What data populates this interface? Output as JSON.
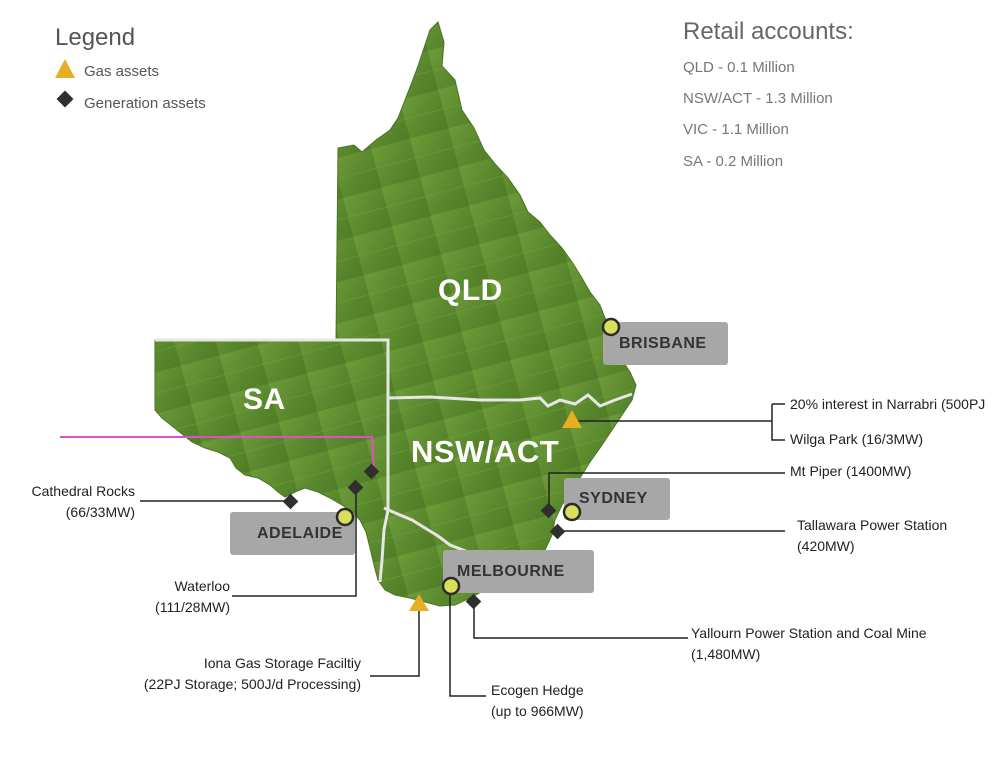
{
  "legend": {
    "title": "Legend",
    "items": [
      {
        "label": "Gas assets",
        "icon": "gas-asset-triangle-icon",
        "color": "#e8ae23"
      },
      {
        "label": "Generation assets",
        "icon": "generation-asset-diamond-icon",
        "color": "#2f2f2f"
      }
    ]
  },
  "retail": {
    "title": "Retail accounts:",
    "rows": [
      "QLD - 0.1 Million",
      "NSW/ACT - 1.3 Million",
      "VIC - 1.1 Million",
      "SA - 0.2 Million"
    ]
  },
  "states": {
    "qld": "QLD",
    "sa": "SA",
    "nsw": "NSW/ACT"
  },
  "cities": {
    "brisbane": "BRISBANE",
    "sydney": "SYDNEY",
    "adelaide": "ADELAIDE",
    "melbourne": "MELBOURNE"
  },
  "assets": {
    "narrabri": "20% interest in Narrabri (500PJ",
    "wilga": "Wilga Park (16/3MW)",
    "mt_piper": "Mt Piper (1400MW)",
    "tallawarra_1": "Tallawara Power Station",
    "tallawarra_2": "(420MW)",
    "yallourn_1": "Yallourn Power Station and Coal Mine",
    "yallourn_2": "(1,480MW)",
    "ecogen_1": "Ecogen Hedge",
    "ecogen_2": "(up to 966MW)",
    "iona_1": "Iona Gas Storage Faciltiy",
    "iona_2": "(22PJ Storage; 500J/d Processing)",
    "waterloo_1": "Waterloo",
    "waterloo_2": "(111/28MW)",
    "cathedral_1": "Cathedral Rocks",
    "cathedral_2": "(66/33MW)"
  },
  "colors": {
    "land": "#5f8f30",
    "border": "#e6e6e6",
    "city_box": "#a7a7a7",
    "city_marker": "#d8df5a",
    "pink_line": "#e04fc4"
  }
}
